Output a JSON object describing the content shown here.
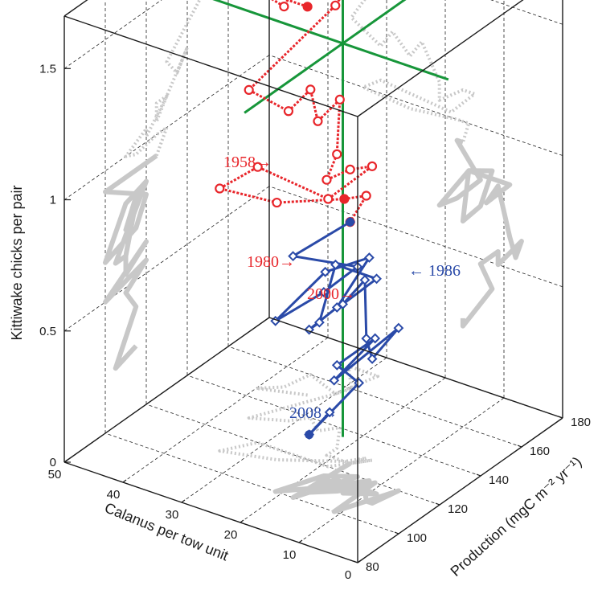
{
  "chart_data": {
    "type": "scatter",
    "projection": "3d",
    "zlabel": "Kittiwake chicks per pair",
    "xlabel": "Calanus per tow unit",
    "ylabel": "Production (mgC m⁻² yr⁻¹)",
    "z_ticks": [
      "0",
      "0.5",
      "1",
      "1.5"
    ],
    "x_ticks": [
      "0",
      "10",
      "20",
      "30",
      "40",
      "50"
    ],
    "y_ticks": [
      "80",
      "100",
      "120",
      "140",
      "160",
      "180"
    ],
    "zlim": [
      0,
      1.7
    ],
    "xlim": [
      0,
      50
    ],
    "ylim": [
      80,
      180
    ],
    "grid": true,
    "colors": {
      "early_series": "#e8262b",
      "late_series": "#2a4aa8",
      "mean_cross": "#17963a",
      "projection": "#c8c8c8",
      "axes": "#1a1a1a"
    },
    "year_labels": [
      {
        "text": "1958→",
        "color": "#e8262b"
      },
      {
        "text": "1980→",
        "color": "#e8262b"
      },
      {
        "text": "← 1986",
        "color": "#2a4aa8"
      },
      {
        "text": "2000→",
        "color": "#e8262b"
      },
      {
        "text": "2008→",
        "color": "#2a4aa8"
      }
    ],
    "series": [
      {
        "name": "",
        "color": "#e8262b",
        "line_style": "dotted",
        "marker": "circle",
        "points": [
          {
            "calanus": 33,
            "production": 150,
            "kittiwake": 1.48
          },
          {
            "calanus": 40,
            "production": 145,
            "kittiwake": 1.52
          },
          {
            "calanus": 37,
            "production": 150,
            "kittiwake": 1.45
          },
          {
            "calanus": 36,
            "production": 160,
            "kittiwake": 1.58
          },
          {
            "calanus": 30,
            "production": 155,
            "kittiwake": 1.58
          },
          {
            "calanus": 28,
            "production": 170,
            "kittiwake": 1.75
          },
          {
            "calanus": 33,
            "production": 170,
            "kittiwake": 1.6
          },
          {
            "calanus": 29,
            "production": 160,
            "kittiwake": 1.55
          },
          {
            "calanus": 30,
            "production": 155,
            "kittiwake": 1.48
          },
          {
            "calanus": 36,
            "production": 130,
            "kittiwake": 1.25
          },
          {
            "calanus": 31,
            "production": 135,
            "kittiwake": 1.18
          },
          {
            "calanus": 29,
            "production": 140,
            "kittiwake": 1.25
          },
          {
            "calanus": 26,
            "production": 135,
            "kittiwake": 1.18
          },
          {
            "calanus": 24,
            "production": 140,
            "kittiwake": 1.25
          },
          {
            "calanus": 21,
            "production": 130,
            "kittiwake": 1.12
          },
          {
            "calanus": 21,
            "production": 125,
            "kittiwake": 1.05
          },
          {
            "calanus": 17,
            "production": 125,
            "kittiwake": 1.12
          },
          {
            "calanus": 15,
            "production": 130,
            "kittiwake": 1.12
          },
          {
            "calanus": 19,
            "production": 120,
            "kittiwake": 1.02
          },
          {
            "calanus": 31,
            "production": 120,
            "kittiwake": 1.05
          },
          {
            "calanus": 34,
            "production": 110,
            "kittiwake": 1.0
          },
          {
            "calanus": 26,
            "production": 115,
            "kittiwake": 0.98
          },
          {
            "calanus": 18,
            "production": 125,
            "kittiwake": 1.0
          },
          {
            "calanus": 16,
            "production": 130,
            "kittiwake": 1.0
          },
          {
            "calanus": 17,
            "production": 125,
            "kittiwake": 0.92
          }
        ]
      },
      {
        "name": "",
        "color": "#2a4aa8",
        "line_style": "solid",
        "marker": "diamond",
        "points": [
          {
            "calanus": 17,
            "production": 125,
            "kittiwake": 0.92
          },
          {
            "calanus": 18,
            "production": 100,
            "kittiwake": 0.92
          },
          {
            "calanus": 14,
            "production": 120,
            "kittiwake": 0.8
          },
          {
            "calanus": 18,
            "production": 115,
            "kittiwake": 0.7
          },
          {
            "calanus": 21,
            "production": 100,
            "kittiwake": 0.65
          },
          {
            "calanus": 16,
            "production": 110,
            "kittiwake": 0.82
          },
          {
            "calanus": 12,
            "production": 120,
            "kittiwake": 0.85
          },
          {
            "calanus": 14,
            "production": 110,
            "kittiwake": 0.7
          },
          {
            "calanus": 17,
            "production": 105,
            "kittiwake": 0.62
          },
          {
            "calanus": 17,
            "production": 110,
            "kittiwake": 0.62
          },
          {
            "calanus": 16,
            "production": 115,
            "kittiwake": 0.82
          },
          {
            "calanus": 9,
            "production": 115,
            "kittiwake": 0.82
          },
          {
            "calanus": 13,
            "production": 110,
            "kittiwake": 0.72
          },
          {
            "calanus": 11,
            "production": 115,
            "kittiwake": 0.8
          },
          {
            "calanus": 9,
            "production": 110,
            "kittiwake": 0.62
          },
          {
            "calanus": 8,
            "production": 110,
            "kittiwake": 0.55
          },
          {
            "calanus": 7,
            "production": 120,
            "kittiwake": 0.62
          },
          {
            "calanus": 11,
            "production": 100,
            "kittiwake": 0.5
          },
          {
            "calanus": 11,
            "production": 120,
            "kittiwake": 0.55
          },
          {
            "calanus": 14,
            "production": 110,
            "kittiwake": 0.48
          },
          {
            "calanus": 12,
            "production": 115,
            "kittiwake": 0.4
          },
          {
            "calanus": 17,
            "production": 105,
            "kittiwake": 0.22
          },
          {
            "calanus": 17,
            "production": 115,
            "kittiwake": 0.25
          }
        ]
      }
    ],
    "mean_point": {
      "calanus": 20,
      "production": 130,
      "kittiwake": 1.55
    }
  }
}
